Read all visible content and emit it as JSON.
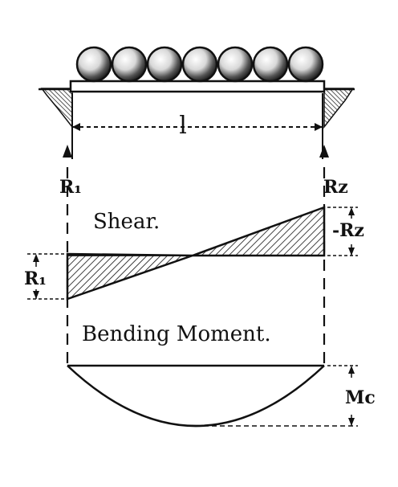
{
  "diagram": {
    "beam_span_label": "l",
    "left_reaction_label": "R₁",
    "right_reaction_label": "Rz",
    "shear_title": "Shear.",
    "shear_left_label": "R₁",
    "shear_right_label": "-Rz",
    "moment_title": "Bending Moment.",
    "moment_max_label": "Mc",
    "load_ball_count": 7
  },
  "colors": {
    "ink": "#111111",
    "paper": "#ffffff"
  }
}
